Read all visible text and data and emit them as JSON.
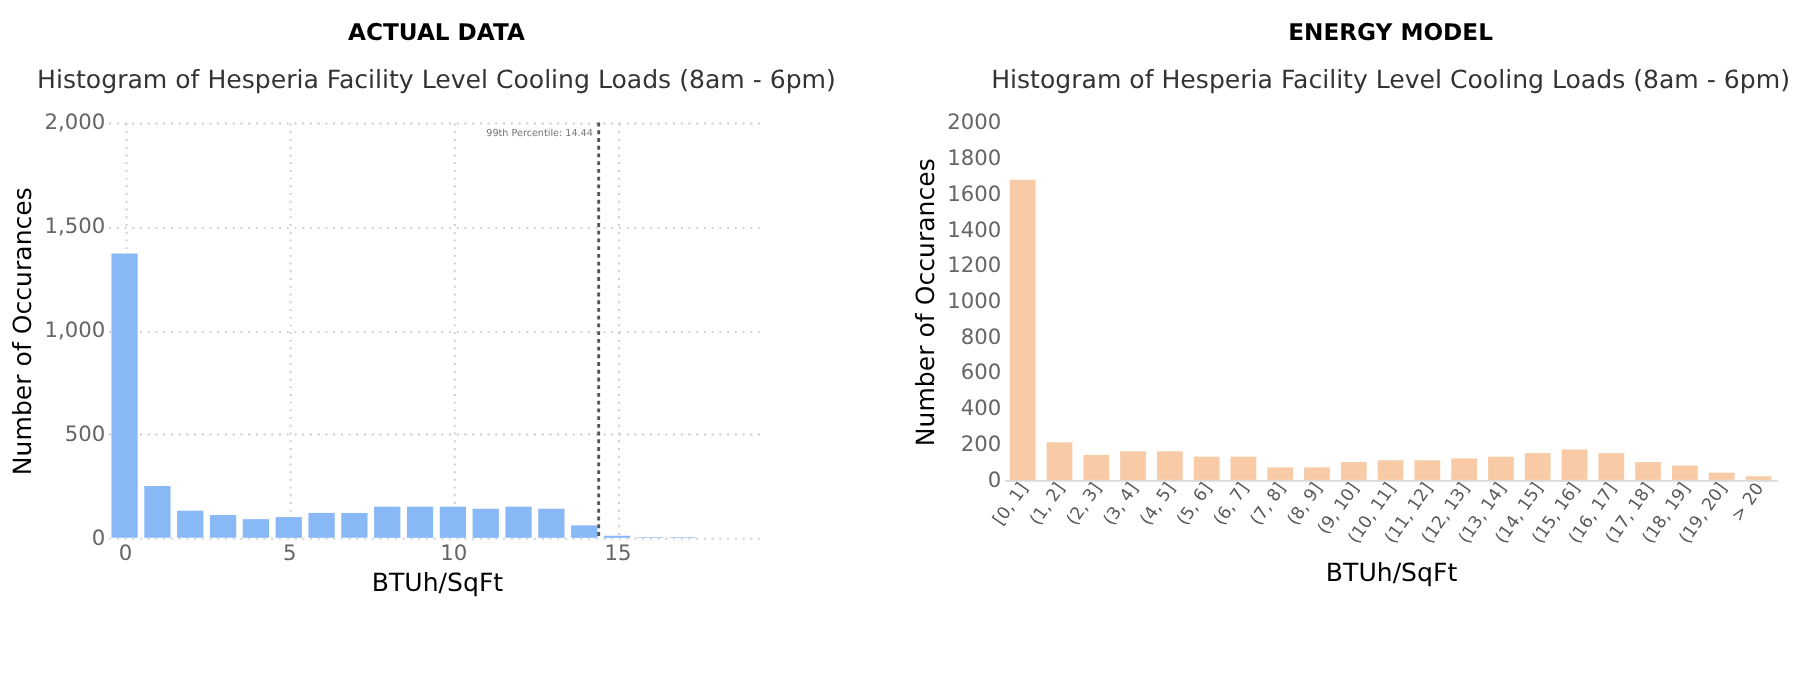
{
  "chart_data": [
    {
      "type": "bar",
      "title": "ACTUAL DATA",
      "subtitle": "Histogram of Hesperia Facility Level Cooling Loads (8am - 6pm)",
      "xlabel": "BTUh/SqFt",
      "ylabel": "Number of Occurances",
      "x": [
        0,
        1,
        2,
        3,
        4,
        5,
        6,
        7,
        8,
        9,
        10,
        11,
        12,
        13,
        14,
        15,
        16,
        17
      ],
      "values": [
        1370,
        250,
        130,
        110,
        90,
        100,
        120,
        120,
        150,
        150,
        150,
        140,
        150,
        140,
        60,
        10,
        3,
        3
      ],
      "color": "#89b8f7",
      "xlim": [
        -0.5,
        19.5
      ],
      "xticks": [
        0,
        5,
        10,
        15
      ],
      "ylim": [
        0,
        2000
      ],
      "yticks": [
        0,
        500,
        {
          "value": 1000,
          "label": "1,000"
        },
        {
          "value": 1500,
          "label": "1,500"
        },
        {
          "value": 2000,
          "label": "2,000"
        }
      ],
      "grid": true,
      "ref_lines": [
        {
          "axis": "x",
          "value": 14.44,
          "label": "99th Percentile: 14.44",
          "line_style": "dotted",
          "color": "#555555"
        }
      ]
    },
    {
      "type": "bar",
      "title": "ENERGY MODEL",
      "subtitle": "Histogram of Hesperia Facility Level Cooling Loads (8am - 6pm)",
      "xlabel": "BTUh/SqFt",
      "ylabel": "Number of Occurances",
      "categories": [
        "[0, 1]",
        "(1, 2]",
        "(2, 3]",
        "(3, 4]",
        "(4, 5]",
        "(5, 6]",
        "(6, 7]",
        "(7, 8]",
        "(8, 9]",
        "(9, 10]",
        "(10, 11]",
        "(11, 12]",
        "(12, 13]",
        "(13, 14]",
        "(14, 15]",
        "(15, 16]",
        "(16, 17]",
        "(17, 18]",
        "(18, 19]",
        "(19, 20]",
        "> 20"
      ],
      "values": [
        1680,
        210,
        140,
        160,
        160,
        130,
        130,
        70,
        70,
        100,
        110,
        110,
        120,
        130,
        150,
        170,
        150,
        100,
        80,
        40,
        20
      ],
      "color": "#f8cba6",
      "ylim": [
        0,
        2000
      ],
      "yticks": [
        0,
        200,
        400,
        600,
        800,
        1000,
        1200,
        1400,
        1600,
        1800,
        2000
      ],
      "grid": false
    }
  ]
}
